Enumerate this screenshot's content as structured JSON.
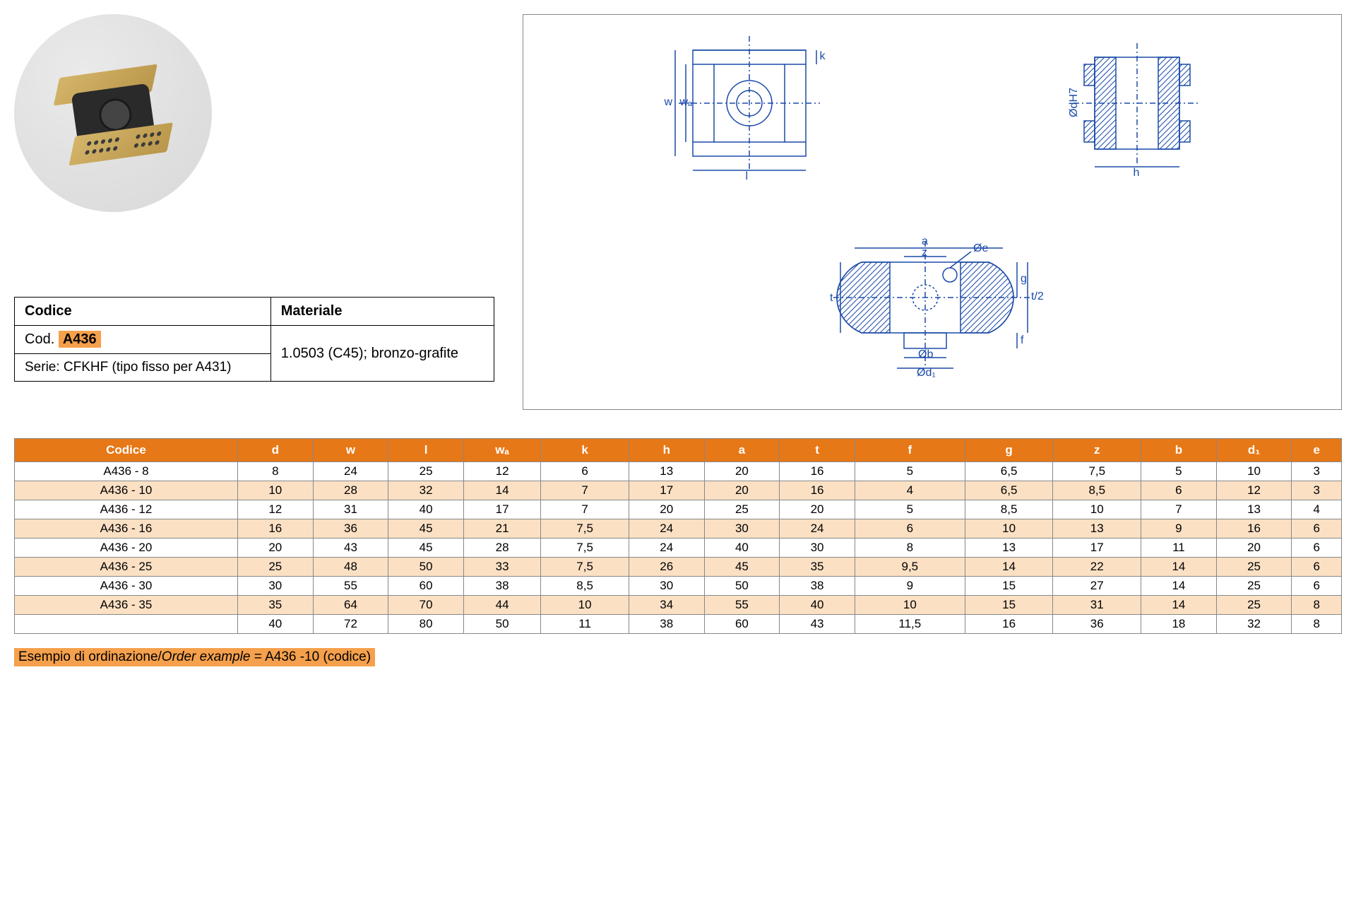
{
  "info": {
    "header_code": "Codice",
    "header_material": "Materiale",
    "code_prefix": "Cod. ",
    "code_value": "A436",
    "serie": "Serie: CFKHF (tipo fisso per A431)",
    "material": "1.0503 (C45); bronzo-grafite"
  },
  "drawing_labels": {
    "w": "w",
    "wa": "wₐ",
    "k": "k",
    "l": "l",
    "dh7": "ØdH7",
    "h": "h",
    "a": "a",
    "z": "z",
    "oe": "Øe",
    "t": "t",
    "g": "g",
    "t2": "t/2",
    "f": "f",
    "ob": "Øb",
    "od1": "Ød₁"
  },
  "data_table": {
    "columns": [
      "Codice",
      "d",
      "w",
      "l",
      "wₐ",
      "k",
      "h",
      "a",
      "t",
      "f",
      "g",
      "z",
      "b",
      "d₁",
      "e"
    ],
    "rows": [
      [
        "A436 - 8",
        "8",
        "24",
        "25",
        "12",
        "6",
        "13",
        "20",
        "16",
        "5",
        "6,5",
        "7,5",
        "5",
        "10",
        "3"
      ],
      [
        "A436 - 10",
        "10",
        "28",
        "32",
        "14",
        "7",
        "17",
        "20",
        "16",
        "4",
        "6,5",
        "8,5",
        "6",
        "12",
        "3"
      ],
      [
        "A436 - 12",
        "12",
        "31",
        "40",
        "17",
        "7",
        "20",
        "25",
        "20",
        "5",
        "8,5",
        "10",
        "7",
        "13",
        "4"
      ],
      [
        "A436 - 16",
        "16",
        "36",
        "45",
        "21",
        "7,5",
        "24",
        "30",
        "24",
        "6",
        "10",
        "13",
        "9",
        "16",
        "6"
      ],
      [
        "A436 - 20",
        "20",
        "43",
        "45",
        "28",
        "7,5",
        "24",
        "40",
        "30",
        "8",
        "13",
        "17",
        "11",
        "20",
        "6"
      ],
      [
        "A436 - 25",
        "25",
        "48",
        "50",
        "33",
        "7,5",
        "26",
        "45",
        "35",
        "9,5",
        "14",
        "22",
        "14",
        "25",
        "6"
      ],
      [
        "A436 - 30",
        "30",
        "55",
        "60",
        "38",
        "8,5",
        "30",
        "50",
        "38",
        "9",
        "15",
        "27",
        "14",
        "25",
        "6"
      ],
      [
        "A436 - 35",
        "35",
        "64",
        "70",
        "44",
        "10",
        "34",
        "55",
        "40",
        "10",
        "15",
        "31",
        "14",
        "25",
        "8"
      ],
      [
        "",
        "40",
        "72",
        "80",
        "50",
        "11",
        "38",
        "60",
        "43",
        "11,5",
        "16",
        "36",
        "18",
        "32",
        "8"
      ]
    ],
    "striped_rows": [
      1,
      3,
      5,
      7
    ],
    "header_bg": "#e77817",
    "stripe_bg": "#fbe0c4"
  },
  "order_example": {
    "label_it": "Esempio di ordinazione",
    "label_en": "Order example",
    "value": "= A436 -10 (codice)"
  }
}
